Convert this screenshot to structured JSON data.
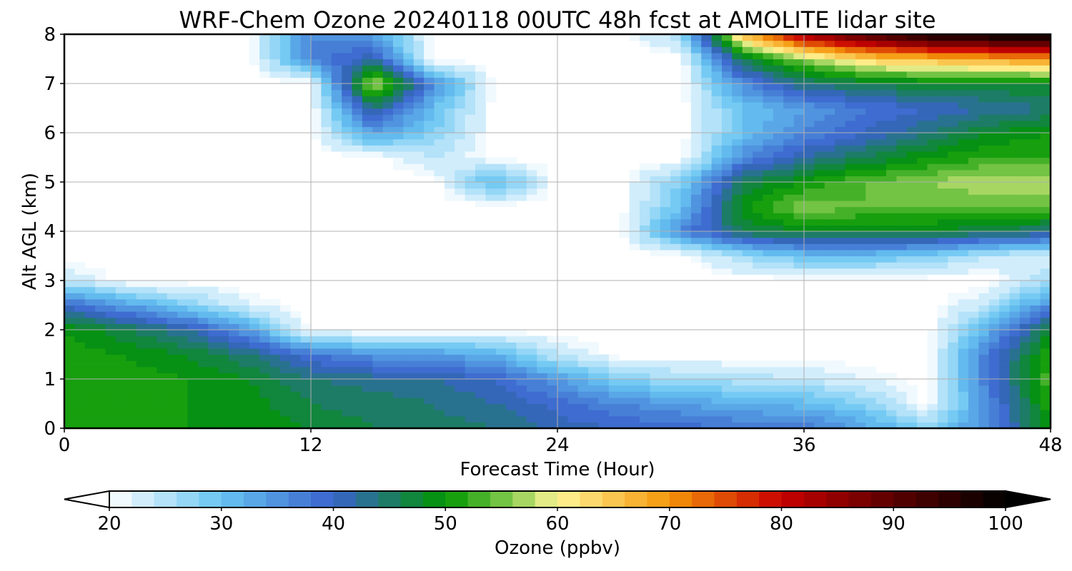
{
  "chart_data": {
    "type": "heatmap",
    "title": "WRF-Chem Ozone  20240118 00UTC 48h fcst at AMOLITE lidar site",
    "xlabel": "Forecast Time (Hour)",
    "ylabel": "Alt AGL (km)",
    "xlim": [
      0,
      48
    ],
    "ylim": [
      0,
      8
    ],
    "xticks": [
      "0",
      "12",
      "24",
      "36",
      "48"
    ],
    "yticks": [
      "0",
      "1",
      "2",
      "3",
      "4",
      "5",
      "6",
      "7",
      "8"
    ],
    "grid": true,
    "x_hours": [
      0,
      3,
      6,
      9,
      12,
      15,
      18,
      21,
      24,
      27,
      30,
      33,
      36,
      39,
      42,
      45,
      48
    ],
    "y_km": [
      0,
      0.5,
      1,
      1.5,
      2,
      2.5,
      3,
      3.5,
      4,
      4.5,
      5,
      5.5,
      6,
      6.5,
      7,
      7.5,
      8
    ],
    "z_ozone_ppbv": [
      [
        50,
        50,
        50,
        50,
        48,
        46,
        45,
        44,
        41,
        40,
        39,
        38,
        38,
        33,
        28,
        36,
        50
      ],
      [
        50,
        50,
        50,
        49,
        46,
        45,
        44,
        42,
        39,
        36,
        34,
        32,
        31,
        28,
        20,
        36,
        52
      ],
      [
        52,
        51,
        50,
        48,
        44,
        43,
        42,
        40,
        34,
        28,
        26,
        25,
        24,
        22,
        20,
        38,
        54
      ],
      [
        51,
        50,
        48,
        44,
        38,
        35,
        34,
        32,
        24,
        20,
        20,
        20,
        20,
        20,
        20,
        38,
        52
      ],
      [
        50,
        46,
        42,
        34,
        20,
        20,
        20,
        20,
        20,
        20,
        20,
        20,
        20,
        20,
        20,
        32,
        48
      ],
      [
        40,
        34,
        28,
        22,
        20,
        20,
        20,
        20,
        20,
        20,
        20,
        20,
        20,
        20,
        20,
        24,
        36
      ],
      [
        24,
        20,
        20,
        20,
        20,
        20,
        20,
        20,
        20,
        20,
        20,
        20,
        20,
        20,
        20,
        20,
        26
      ],
      [
        20,
        20,
        20,
        20,
        20,
        20,
        20,
        20,
        20,
        20,
        20,
        26,
        30,
        30,
        28,
        24,
        22
      ],
      [
        20,
        20,
        20,
        20,
        20,
        20,
        20,
        20,
        20,
        20,
        36,
        46,
        48,
        48,
        48,
        46,
        44
      ],
      [
        20,
        20,
        20,
        20,
        20,
        20,
        20,
        20,
        20,
        20,
        30,
        50,
        56,
        54,
        54,
        54,
        54
      ],
      [
        20,
        20,
        20,
        20,
        20,
        20,
        20,
        32,
        20,
        20,
        28,
        46,
        50,
        54,
        56,
        58,
        58
      ],
      [
        20,
        20,
        20,
        20,
        20,
        20,
        24,
        20,
        20,
        20,
        20,
        36,
        42,
        46,
        50,
        52,
        52
      ],
      [
        20,
        20,
        20,
        20,
        20,
        34,
        28,
        20,
        20,
        20,
        20,
        30,
        36,
        40,
        44,
        48,
        50
      ],
      [
        20,
        20,
        20,
        20,
        20,
        44,
        30,
        20,
        20,
        20,
        20,
        30,
        34,
        38,
        40,
        42,
        44
      ],
      [
        20,
        20,
        20,
        20,
        20,
        58,
        36,
        20,
        20,
        20,
        20,
        36,
        44,
        46,
        48,
        48,
        48
      ],
      [
        20,
        20,
        20,
        20,
        36,
        42,
        20,
        20,
        20,
        20,
        20,
        46,
        56,
        64,
        66,
        68,
        70
      ],
      [
        20,
        20,
        20,
        20,
        36,
        34,
        20,
        20,
        20,
        20,
        26,
        66,
        84,
        92,
        98,
        100,
        100
      ]
    ],
    "colorbar": {
      "label": "Ozone  (ppbv)",
      "min": 20,
      "max": 100,
      "ticks": [
        "20",
        "30",
        "40",
        "50",
        "60",
        "70",
        "80",
        "90",
        "100"
      ],
      "extend": "both",
      "stops": [
        {
          "v": 20,
          "c": "#ffffff"
        },
        {
          "v": 30,
          "c": "#66c4f2"
        },
        {
          "v": 40,
          "c": "#3a62cc"
        },
        {
          "v": 50,
          "c": "#009600"
        },
        {
          "v": 56,
          "c": "#8acc52"
        },
        {
          "v": 60,
          "c": "#fff596"
        },
        {
          "v": 70,
          "c": "#f5960a"
        },
        {
          "v": 80,
          "c": "#c80000"
        },
        {
          "v": 90,
          "c": "#5a0000"
        },
        {
          "v": 100,
          "c": "#000000"
        }
      ]
    }
  }
}
